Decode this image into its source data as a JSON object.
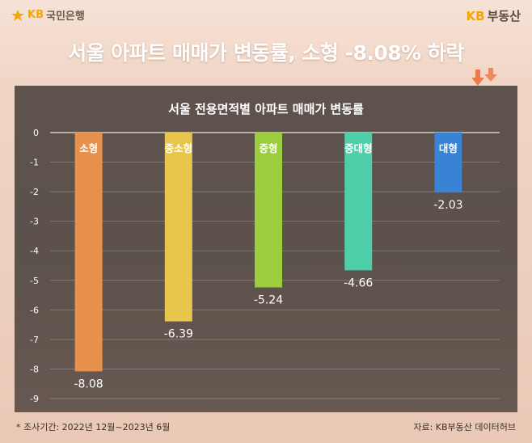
{
  "header": {
    "brand_left": "국민은행",
    "brand_left_mark": "KB",
    "brand_right_mark": "KB",
    "brand_right": "부동산",
    "headline": "서울 아파트 매매가 변동률, 소형 -8.08% 하락"
  },
  "footer": {
    "note": "* 조사기간: 2022년 12월~2023년 6월",
    "source": "자료: KB부동산 데이터허브"
  },
  "chart_data": {
    "type": "bar",
    "title": "서울 전용면적별 아파트 매매가 변동률",
    "categories": [
      "소형",
      "중소형",
      "중형",
      "중대형",
      "대형"
    ],
    "values": [
      -8.08,
      -6.39,
      -5.24,
      -4.66,
      -2.03
    ],
    "value_labels": [
      "-8.08",
      "-6.39",
      "-5.24",
      "-4.66",
      "-2.03"
    ],
    "colors": [
      "#e8914d",
      "#e7c64b",
      "#9ccd3f",
      "#4fcfa9",
      "#3a82d6"
    ],
    "ylim": [
      -9,
      0
    ],
    "yticks": [
      "0",
      "-1",
      "-2",
      "-3",
      "-4",
      "-5",
      "-6",
      "-7",
      "-8",
      "-9"
    ],
    "grid": true
  }
}
